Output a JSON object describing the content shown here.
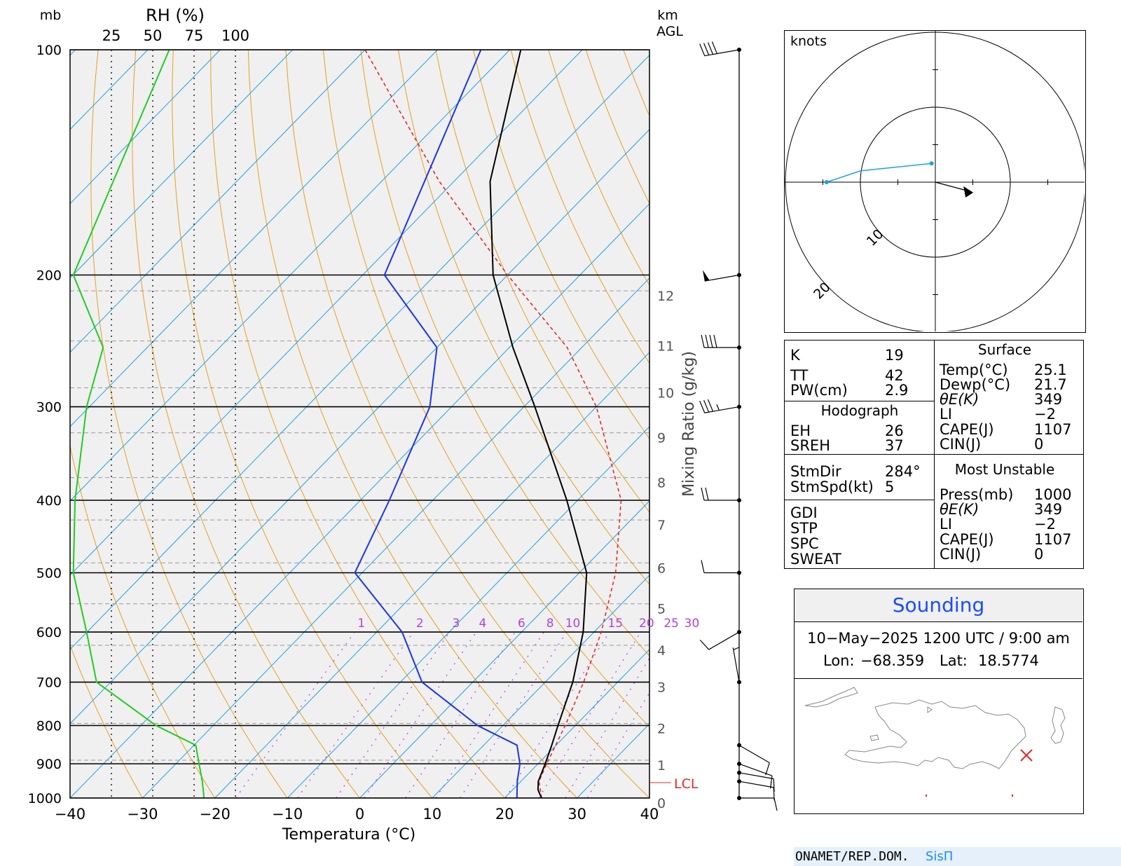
{
  "chart_data": {
    "type": "skew-t",
    "x_axis": {
      "label": "Temperatura (°C)",
      "ticks": [
        "-40",
        "-30",
        "-20",
        "-10",
        "0",
        "10",
        "20",
        "30",
        "40"
      ],
      "range": [
        -40,
        40
      ]
    },
    "y_axis": {
      "unit_label": "mb",
      "ticks": [
        "100",
        "200",
        "300",
        "400",
        "500",
        "600",
        "700",
        "800",
        "900",
        "1000"
      ],
      "range": [
        100,
        1000
      ]
    },
    "km_axis": {
      "unit_label": "km",
      "unit_label2": "AGL",
      "ticks": [
        "0",
        "1",
        "2",
        "3",
        "4",
        "5",
        "6",
        "7",
        "8",
        "9",
        "10",
        "11",
        "12"
      ]
    },
    "rh_axis": {
      "label": "RH (%)",
      "ticks": [
        "25",
        "50",
        "75",
        "100"
      ]
    },
    "mixing_ratio": {
      "label": "Mixing Ratio (g/kg)",
      "ticks": [
        "1",
        "2",
        "3",
        "4",
        "6",
        "8",
        "10",
        "15",
        "20",
        "25",
        "30"
      ]
    },
    "lcl_label": "LCL",
    "temperature_profile": [
      {
        "p": 1000,
        "t": 25.1
      },
      {
        "p": 975,
        "t": 23.5
      },
      {
        "p": 950,
        "t": 22.4
      },
      {
        "p": 900,
        "t": 21.0
      },
      {
        "p": 850,
        "t": 19.4
      },
      {
        "p": 800,
        "t": 17.6
      },
      {
        "p": 700,
        "t": 13.8
      },
      {
        "p": 600,
        "t": 8.5
      },
      {
        "p": 500,
        "t": 1.0
      },
      {
        "p": 400,
        "t": -11.5
      },
      {
        "p": 300,
        "t": -28.5
      },
      {
        "p": 250,
        "t": -39.5
      },
      {
        "p": 200,
        "t": -52.0
      },
      {
        "p": 150,
        "t": -65.0
      },
      {
        "p": 100,
        "t": -78.5
      }
    ],
    "dewpoint_profile": [
      {
        "p": 1000,
        "t": 21.7
      },
      {
        "p": 950,
        "t": 19.5
      },
      {
        "p": 900,
        "t": 17.5
      },
      {
        "p": 850,
        "t": 14.6
      },
      {
        "p": 800,
        "t": 6.5
      },
      {
        "p": 700,
        "t": -7.0
      },
      {
        "p": 600,
        "t": -16.5
      },
      {
        "p": 500,
        "t": -31.0
      },
      {
        "p": 400,
        "t": -36.0
      },
      {
        "p": 300,
        "t": -43.0
      },
      {
        "p": 250,
        "t": -50.0
      },
      {
        "p": 200,
        "t": -67.0
      },
      {
        "p": 100,
        "t": -84.0
      }
    ],
    "rh_profile": [
      {
        "p": 1000,
        "rh": 81
      },
      {
        "p": 950,
        "rh": 80
      },
      {
        "p": 900,
        "rh": 78
      },
      {
        "p": 850,
        "rh": 76
      },
      {
        "p": 800,
        "rh": 52
      },
      {
        "p": 700,
        "rh": 16
      },
      {
        "p": 600,
        "rh": 10
      },
      {
        "p": 500,
        "rh": 2
      },
      {
        "p": 400,
        "rh": 3
      },
      {
        "p": 300,
        "rh": 10
      },
      {
        "p": 250,
        "rh": 20
      },
      {
        "p": 200,
        "rh": 2
      },
      {
        "p": 100,
        "rh": 60
      }
    ],
    "parcel_profile": [
      {
        "p": 1000,
        "t": 25.1
      },
      {
        "p": 950,
        "t": 22.5
      },
      {
        "p": 900,
        "t": 21.2
      },
      {
        "p": 800,
        "t": 18.6
      },
      {
        "p": 700,
        "t": 15.3
      },
      {
        "p": 600,
        "t": 11.0
      },
      {
        "p": 500,
        "t": 5.0
      },
      {
        "p": 400,
        "t": -4.0
      },
      {
        "p": 300,
        "t": -20.0
      },
      {
        "p": 250,
        "t": -32.0
      },
      {
        "p": 200,
        "t": -50.0
      },
      {
        "p": 150,
        "t": -72.0
      },
      {
        "p": 100,
        "t": -100.0
      }
    ],
    "height_km_ticks": [
      {
        "km": 0,
        "p": 1000
      },
      {
        "km": 1,
        "p": 890
      },
      {
        "km": 2,
        "p": 795
      },
      {
        "km": 3,
        "p": 700
      },
      {
        "km": 4,
        "p": 625
      },
      {
        "km": 5,
        "p": 550
      },
      {
        "km": 6,
        "p": 485
      },
      {
        "km": 7,
        "p": 425
      },
      {
        "km": 8,
        "p": 373
      },
      {
        "km": 9,
        "p": 325
      },
      {
        "km": 10,
        "p": 283
      },
      {
        "km": 11,
        "p": 245
      },
      {
        "km": 12,
        "p": 210
      }
    ],
    "lcl_pressure": 955,
    "wind_barbs": [
      {
        "p": 100,
        "dir": 260,
        "kt": 40
      },
      {
        "p": 200,
        "dir": 260,
        "kt": 50
      },
      {
        "p": 250,
        "dir": 270,
        "kt": 40
      },
      {
        "p": 300,
        "dir": 260,
        "kt": 35
      },
      {
        "p": 400,
        "dir": 270,
        "kt": 20
      },
      {
        "p": 500,
        "dir": 270,
        "kt": 10
      },
      {
        "p": 600,
        "dir": 240,
        "kt": 10
      },
      {
        "p": 700,
        "dir": 350,
        "kt": 5
      },
      {
        "p": 850,
        "dir": 120,
        "kt": 10
      },
      {
        "p": 900,
        "dir": 110,
        "kt": 10
      },
      {
        "p": 925,
        "dir": 100,
        "kt": 10
      },
      {
        "p": 950,
        "dir": 100,
        "kt": 10
      },
      {
        "p": 1000,
        "dir": 90,
        "kt": 10
      }
    ]
  },
  "hodograph": {
    "unit_label": "knots",
    "rings": [
      "10",
      "20",
      "30",
      "40"
    ],
    "points": [
      {
        "u": -0.5,
        "v": 2.5
      },
      {
        "u": -10,
        "v": 1.5
      },
      {
        "u": -14.5,
        "v": 0
      }
    ],
    "storm_motion": {
      "u": 4.5,
      "v": -1.2
    }
  },
  "indices": {
    "K_label": "K",
    "K": "19",
    "TT_label": "TT",
    "TT": "42",
    "PW_label": "PW(cm)",
    "PW": "2.9",
    "hodo_header": "Hodograph",
    "EH_label": "EH",
    "EH": "26",
    "SREH_label": "SREH",
    "SREH": "37",
    "StmDir_label": "StmDir",
    "StmDir": "284°",
    "StmSpd_label": "StmSpd(kt)",
    "StmSpd": "5",
    "GDI_label": "GDI",
    "STP_label": "STP",
    "SPC_label": "SPC",
    "SWEAT_label": "SWEAT"
  },
  "surface": {
    "header": "Surface",
    "Temp_label": "Temp(°C)",
    "Temp": "25.1",
    "Dewp_label": "Dewp(°C)",
    "Dewp": "21.7",
    "ThetaE_label": "θE(K)",
    "ThetaE": "349",
    "LI_label": "LI",
    "LI": "−2",
    "CAPE_label": "CAPE(J)",
    "CAPE": "1107",
    "CIN_label": "CIN(J)",
    "CIN": "0"
  },
  "most_unstable": {
    "header": "Most Unstable",
    "Press_label": "Press(mb)",
    "Press": "1000",
    "ThetaE_label": "θE(K)",
    "ThetaE": "349",
    "LI_label": "LI",
    "LI": "−2",
    "CAPE_label": "CAPE(J)",
    "CAPE": "1107",
    "CIN_label": "CIN(J)",
    "CIN": "0"
  },
  "sounding": {
    "title": "Sounding",
    "datetime": "10−May−2025 1200 UTC / 9:00 am",
    "lon_label": "Lon:",
    "lon": "−68.359",
    "lat_label": "Lat:",
    "lat": "18.5774"
  },
  "footer": {
    "left": "ONAMET/REP.DOM.",
    "right": "SisΠ"
  },
  "colors": {
    "temperature": "#000000",
    "dewpoint": "#1a35e6",
    "rh": "#22cc22",
    "parcel": "#e62828",
    "isotherm": "#1ea0e6",
    "dry_adiabat": "#e6a020",
    "mixing_ratio": "#b040e0",
    "background": "#f0f0f0"
  }
}
